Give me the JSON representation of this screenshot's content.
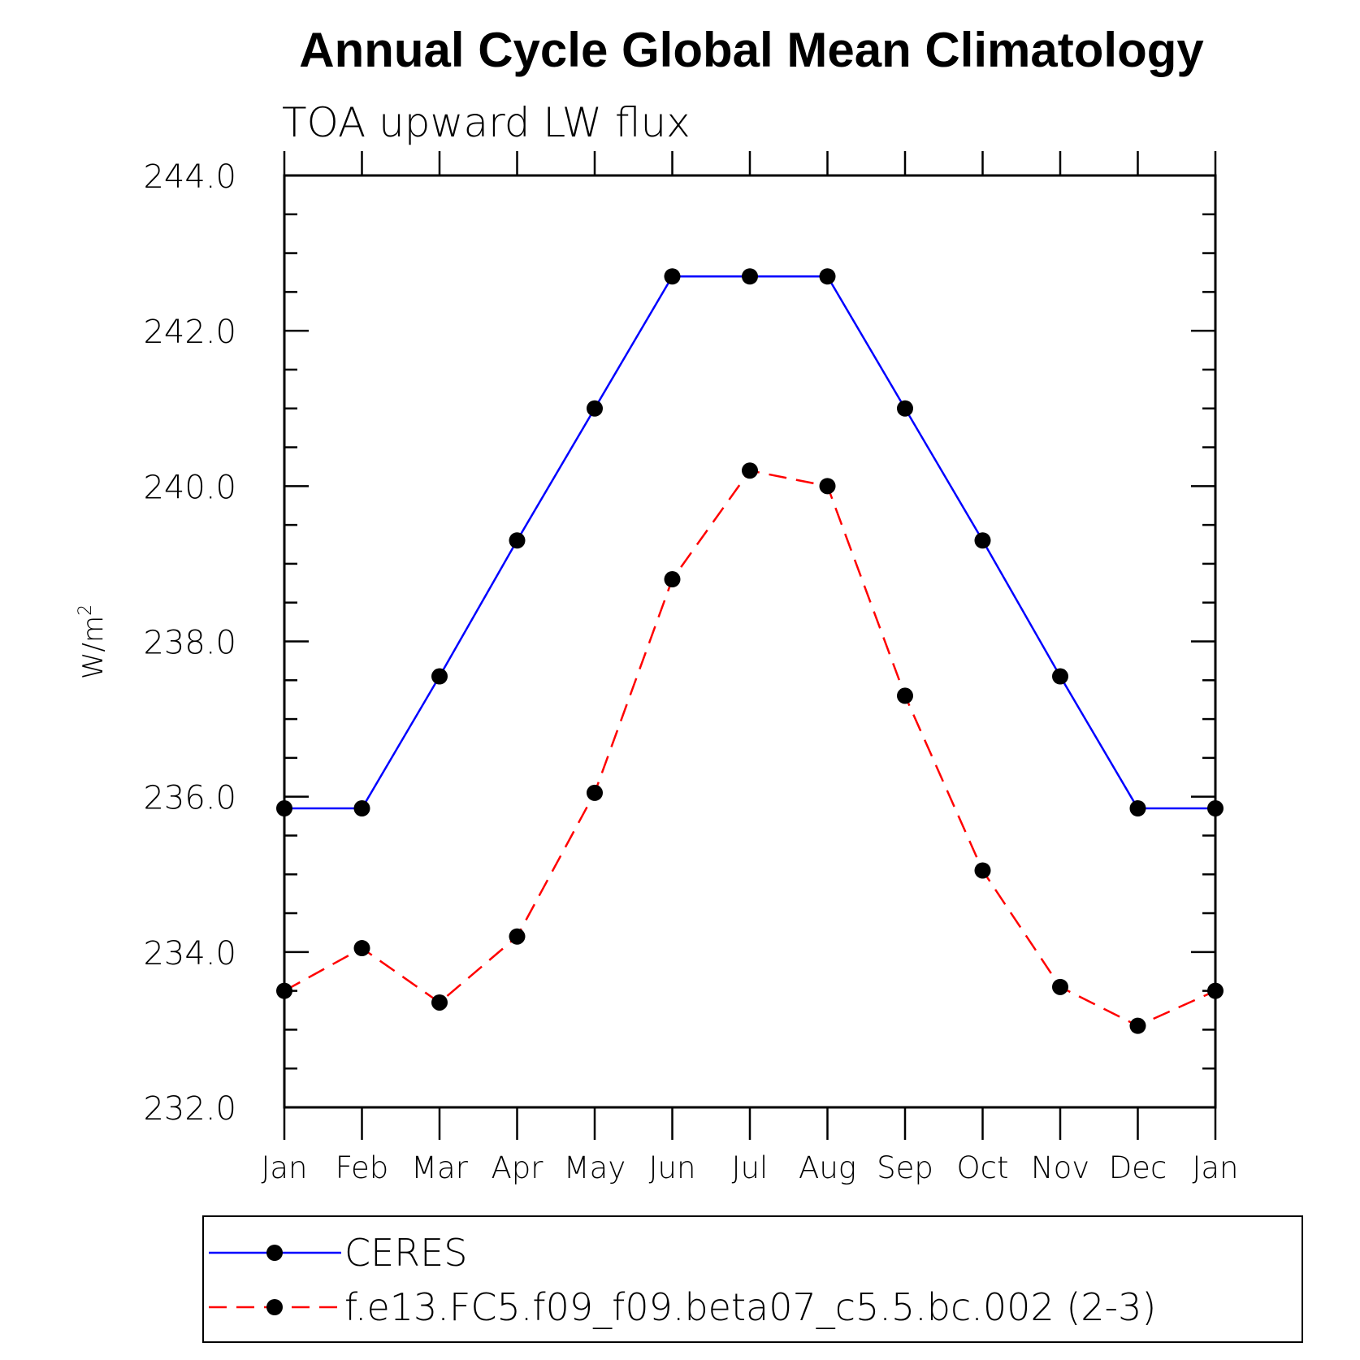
{
  "chart_data": {
    "type": "line",
    "title": "Annual Cycle Global Mean Climatology",
    "subtitle": "TOA upward LW flux",
    "ylabel": "W/m",
    "ylabel_superscript": "2",
    "xlabel": "",
    "categories": [
      "Jan",
      "Feb",
      "Mar",
      "Apr",
      "May",
      "Jun",
      "Jul",
      "Aug",
      "Sep",
      "Oct",
      "Nov",
      "Dec",
      "Jan"
    ],
    "ylim": [
      232.0,
      244.0
    ],
    "yticks": [
      "232.0",
      "234.0",
      "236.0",
      "238.0",
      "240.0",
      "242.0",
      "244.0"
    ],
    "grid": false,
    "legend_position": "bottom",
    "series": [
      {
        "name": "CERES",
        "color": "#0000ff",
        "dash": "solid",
        "values": [
          235.85,
          235.85,
          237.55,
          239.3,
          241.0,
          242.7,
          242.7,
          242.7,
          241.0,
          239.3,
          237.55,
          235.85,
          235.85
        ]
      },
      {
        "name": "f.e13.FC5.f09_f09.beta07_c5.5.bc.002 (2-3)",
        "color": "#ff0000",
        "dash": "dashed",
        "values": [
          233.5,
          234.05,
          233.35,
          234.2,
          236.05,
          238.8,
          240.2,
          240.0,
          237.3,
          235.05,
          233.55,
          233.05,
          233.5
        ]
      }
    ]
  }
}
